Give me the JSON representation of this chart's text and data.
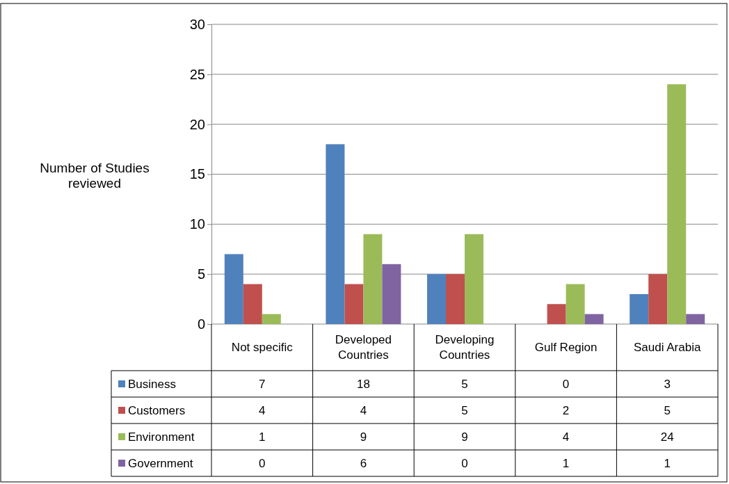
{
  "chart_data": {
    "type": "bar",
    "ylabel": "Number of Studies reviewed",
    "categories": [
      "Not specific",
      "Developed Countries",
      "Developing Countries",
      "Gulf Region",
      "Saudi Arabia"
    ],
    "series": [
      {
        "name": "Business",
        "color": "#4f81bd",
        "values": [
          7,
          18,
          5,
          0,
          3
        ]
      },
      {
        "name": "Customers",
        "color": "#c0504d",
        "values": [
          4,
          4,
          5,
          2,
          5
        ]
      },
      {
        "name": "Environment",
        "color": "#9bbb59",
        "values": [
          1,
          9,
          9,
          4,
          24
        ]
      },
      {
        "name": "Government",
        "color": "#8064a2",
        "values": [
          0,
          6,
          0,
          1,
          1
        ]
      }
    ],
    "ylim": [
      0,
      30
    ],
    "yticks": [
      0,
      5,
      10,
      15,
      20,
      25,
      30
    ],
    "grid": "y",
    "legend": "bottom",
    "data_labels": true
  }
}
